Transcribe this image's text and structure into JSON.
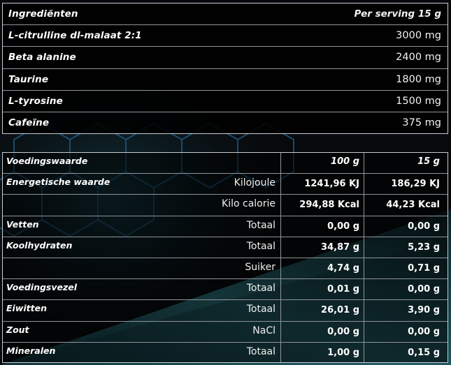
{
  "ingredients": {
    "header": {
      "name": "Ingrediënten",
      "amount": "Per serving 15 g"
    },
    "rows": [
      {
        "name": "L-citrulline dl-malaat 2:1",
        "amount": "3000 mg"
      },
      {
        "name": "Beta alanine",
        "amount": "2400 mg"
      },
      {
        "name": "Taurine",
        "amount": "1800 mg"
      },
      {
        "name": "L-tyrosine",
        "amount": "1500 mg"
      },
      {
        "name": "Cafeïne",
        "amount": "375 mg"
      }
    ]
  },
  "nutrition": {
    "header": {
      "name": "Voedingswaarde",
      "col_100g": "100 g",
      "col_15g": "15 g"
    },
    "rows": [
      {
        "name": "Energetische waarde",
        "unit": "Kilojoule",
        "v100": "1241,96 KJ",
        "v15": "186,29 KJ"
      },
      {
        "name": "",
        "unit": "Kilo calorie",
        "v100": "294,88 Kcal",
        "v15": "44,23 Kcal"
      },
      {
        "name": "Vetten",
        "unit": "Totaal",
        "v100": "0,00 g",
        "v15": "0,00 g"
      },
      {
        "name": "Koolhydraten",
        "unit": "Totaal",
        "v100": "34,87 g",
        "v15": "5,23 g"
      },
      {
        "name": "",
        "unit": "Suiker",
        "v100": "4,74 g",
        "v15": "0,71 g"
      },
      {
        "name": "Voedingsvezel",
        "unit": "Totaal",
        "v100": "0,01 g",
        "v15": "0,00 g"
      },
      {
        "name": "Eiwitten",
        "unit": "Totaal",
        "v100": "26,01 g",
        "v15": "3,90 g"
      },
      {
        "name": "Zout",
        "unit": "NaCl",
        "v100": "0,00 g",
        "v15": "0,00 g"
      },
      {
        "name": "Mineralen",
        "unit": "Totaal",
        "v100": "1,00 g",
        "v15": "0,15 g"
      }
    ]
  },
  "colors": {
    "background": "#080a0d",
    "border": "#c8ccd0",
    "divider": "#8f949a",
    "teal_accent": "#2f6f78"
  }
}
